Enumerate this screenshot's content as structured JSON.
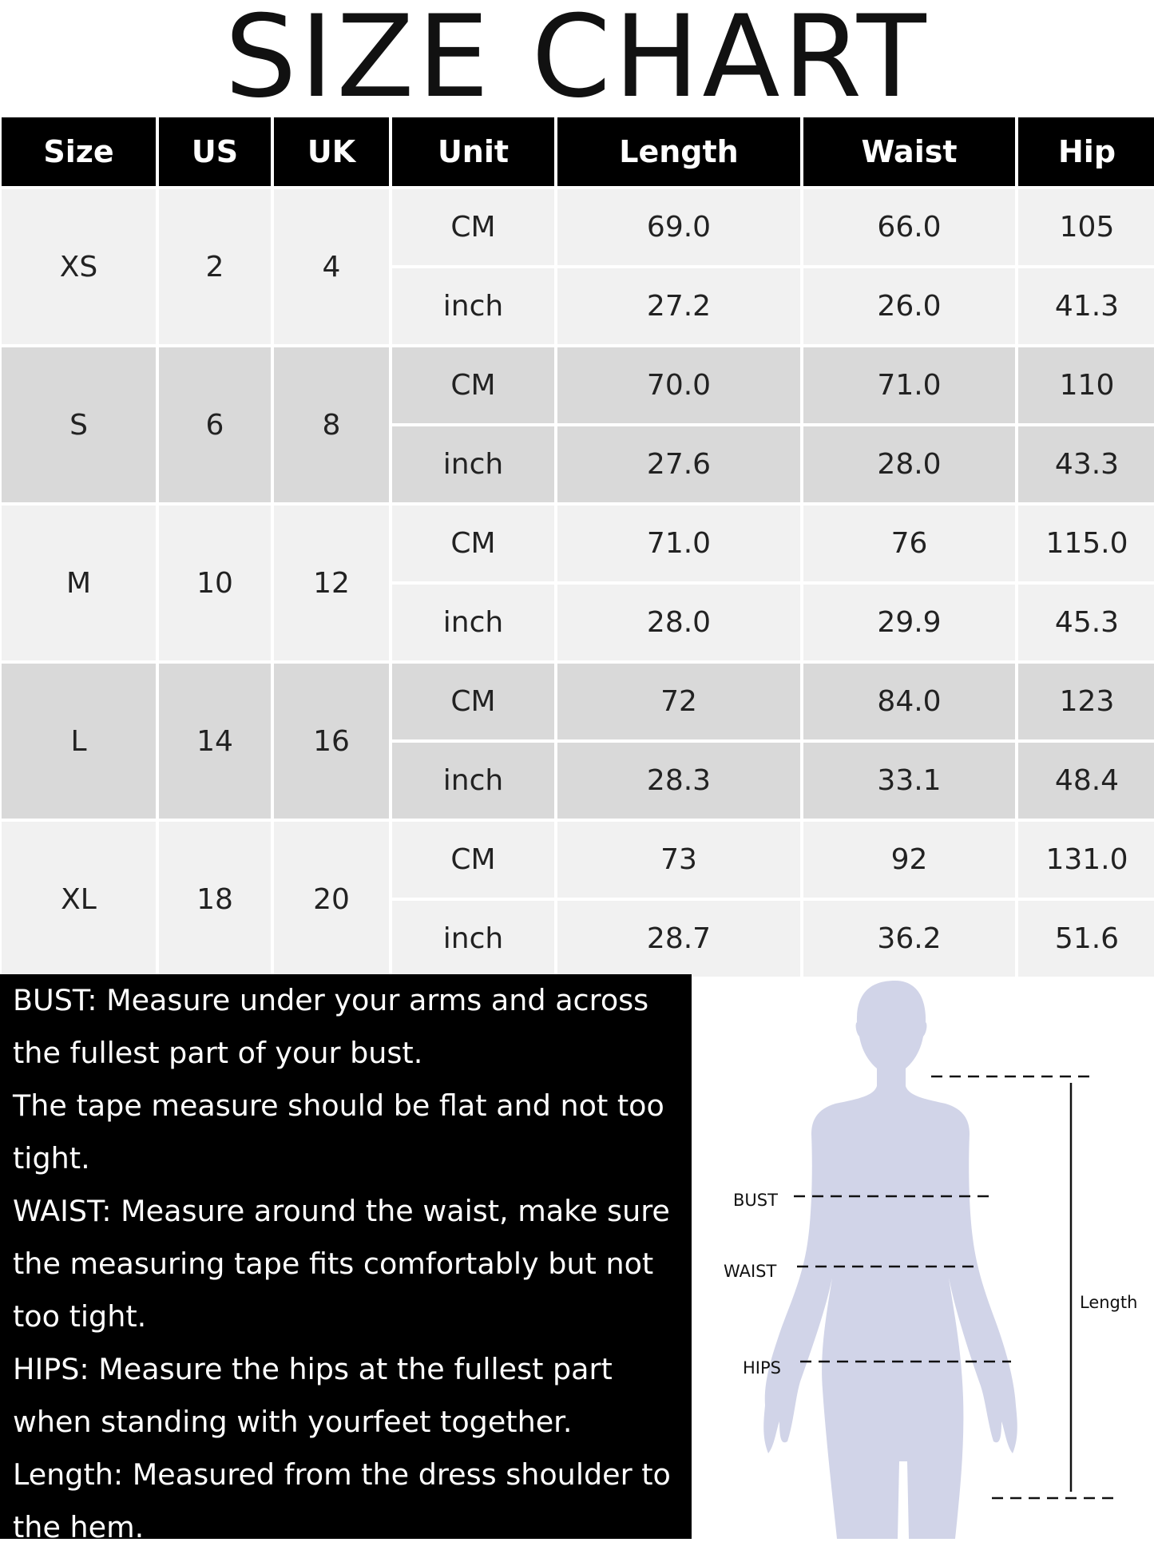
{
  "title": "SIZE CHART",
  "table": {
    "headers": [
      "Size",
      "US",
      "UK",
      "Unit",
      "Length",
      "Waist",
      "Hip"
    ],
    "rows": [
      {
        "size": "XS",
        "us": "2",
        "uk": "4",
        "cm": {
          "unit": "CM",
          "length": "69.0",
          "waist": "66.0",
          "hip": "105"
        },
        "inch": {
          "unit": "inch",
          "length": "27.2",
          "waist": "26.0",
          "hip": "41.3"
        }
      },
      {
        "size": "S",
        "us": "6",
        "uk": "8",
        "cm": {
          "unit": "CM",
          "length": "70.0",
          "waist": "71.0",
          "hip": "110"
        },
        "inch": {
          "unit": "inch",
          "length": "27.6",
          "waist": "28.0",
          "hip": "43.3"
        }
      },
      {
        "size": "M",
        "us": "10",
        "uk": "12",
        "cm": {
          "unit": "CM",
          "length": "71.0",
          "waist": "76",
          "hip": "115.0"
        },
        "inch": {
          "unit": "inch",
          "length": "28.0",
          "waist": "29.9",
          "hip": "45.3"
        }
      },
      {
        "size": "L",
        "us": "14",
        "uk": "16",
        "cm": {
          "unit": "CM",
          "length": "72",
          "waist": "84.0",
          "hip": "123"
        },
        "inch": {
          "unit": "inch",
          "length": "28.3",
          "waist": "33.1",
          "hip": "48.4"
        }
      },
      {
        "size": "XL",
        "us": "18",
        "uk": "20",
        "cm": {
          "unit": "CM",
          "length": "73",
          "waist": "92",
          "hip": "131.0"
        },
        "inch": {
          "unit": "inch",
          "length": "28.7",
          "waist": "36.2",
          "hip": "51.6"
        }
      }
    ]
  },
  "notes": [
    "BUST: Measure under your arms and across",
    "the fullest part of your bust.",
    "The tape measure should be flat and not too",
    "tight.",
    "WAIST: Measure around the waist, make sure",
    "the measuring tape fits comfortably but not",
    "too tight.",
    "HIPS: Measure the hips at the fullest part",
    "when standing with yourfeet together.",
    "Length: Measured from the dress shoulder to",
    "the hem."
  ],
  "figure": {
    "labels": {
      "bust": "BUST",
      "waist": "WAIST",
      "hips": "HIPS",
      "length": "Length"
    },
    "silhouette_color": "#d1d4e8"
  }
}
